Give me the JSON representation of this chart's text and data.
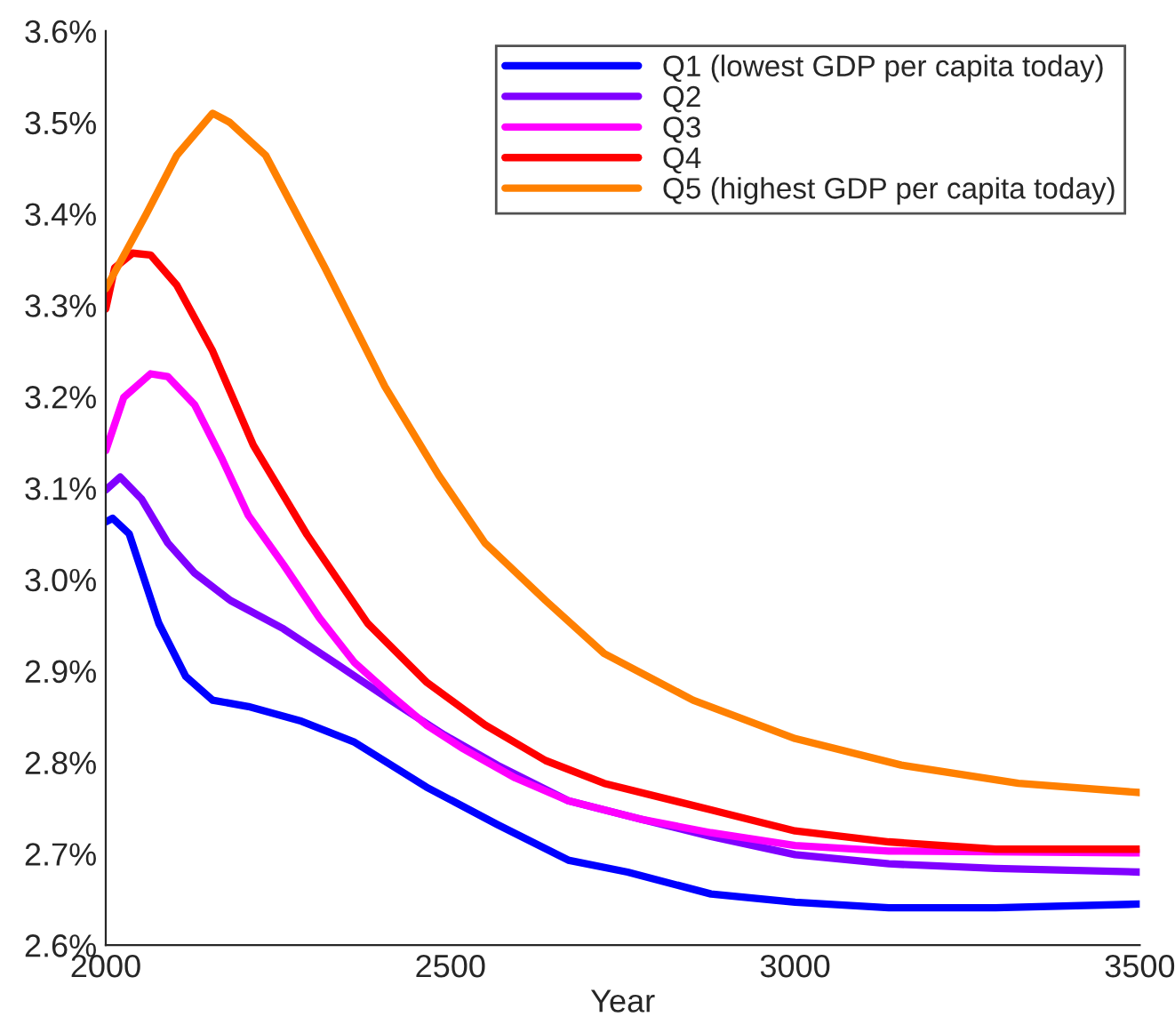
{
  "chart_data": {
    "type": "line",
    "xlabel": "Year",
    "xlim": [
      2000,
      3500
    ],
    "xticks": [
      2000,
      2500,
      3000,
      3500
    ],
    "ylim": [
      2.6,
      3.6
    ],
    "yticks": [
      {
        "value": 2.6,
        "label": "2.6%"
      },
      {
        "value": 2.7,
        "label": "2.7%"
      },
      {
        "value": 2.8,
        "label": "2.8%"
      },
      {
        "value": 2.9,
        "label": "2.9%"
      },
      {
        "value": 3.0,
        "label": "3.0%"
      },
      {
        "value": 3.1,
        "label": "3.1%"
      },
      {
        "value": 3.2,
        "label": "3.2%"
      },
      {
        "value": 3.3,
        "label": "3.3%"
      },
      {
        "value": 3.4,
        "label": "3.4%"
      },
      {
        "value": 3.5,
        "label": "3.5%"
      },
      {
        "value": 3.6,
        "label": "3.6%"
      }
    ],
    "grid": false,
    "legend": "top right",
    "series": [
      {
        "name": "Q1 (lowest GDP per capita today)",
        "color": "#0000ff",
        "x": [
          2000,
          2010,
          2034,
          2077,
          2116,
          2155,
          2207,
          2284,
          2361,
          2465,
          2568,
          2671,
          2757,
          2878,
          3000,
          3136,
          3291,
          3500
        ],
        "values": [
          3.063,
          3.067,
          3.05,
          2.952,
          2.894,
          2.868,
          2.861,
          2.845,
          2.822,
          2.773,
          2.732,
          2.693,
          2.68,
          2.656,
          2.647,
          2.641,
          2.641,
          2.645
        ]
      },
      {
        "name": "Q2",
        "color": "#8000ff",
        "x": [
          2000,
          2021,
          2052,
          2090,
          2129,
          2181,
          2258,
          2336,
          2413,
          2491,
          2568,
          2671,
          2775,
          2878,
          3000,
          3136,
          3291,
          3500
        ],
        "values": [
          3.098,
          3.112,
          3.088,
          3.04,
          3.007,
          2.977,
          2.946,
          2.907,
          2.868,
          2.83,
          2.797,
          2.758,
          2.738,
          2.719,
          2.699,
          2.689,
          2.684,
          2.68
        ]
      },
      {
        "name": "Q3",
        "color": "#ff00ff",
        "x": [
          2000,
          2026,
          2065,
          2090,
          2129,
          2168,
          2207,
          2258,
          2310,
          2361,
          2413,
          2465,
          2516,
          2594,
          2671,
          2775,
          2878,
          3000,
          3136,
          3500
        ],
        "values": [
          3.141,
          3.199,
          3.225,
          3.222,
          3.191,
          3.133,
          3.07,
          3.016,
          2.958,
          2.909,
          2.874,
          2.841,
          2.816,
          2.783,
          2.758,
          2.738,
          2.723,
          2.709,
          2.703,
          2.701
        ]
      },
      {
        "name": "Q4",
        "color": "#ff0000",
        "x": [
          2000,
          2013,
          2039,
          2065,
          2103,
          2155,
          2214,
          2292,
          2380,
          2465,
          2550,
          2638,
          2723,
          2878,
          3000,
          3136,
          3291,
          3500
        ],
        "values": [
          3.296,
          3.341,
          3.357,
          3.355,
          3.322,
          3.25,
          3.147,
          3.049,
          2.952,
          2.888,
          2.841,
          2.802,
          2.777,
          2.748,
          2.725,
          2.713,
          2.705,
          2.705
        ]
      },
      {
        "name": "Q5 (highest GDP per capita today)",
        "color": "#ff8000",
        "x": [
          2000,
          2059,
          2103,
          2155,
          2180,
          2232,
          2318,
          2405,
          2483,
          2550,
          2638,
          2723,
          2852,
          3000,
          3154,
          3324,
          3500
        ],
        "values": [
          3.318,
          3.4,
          3.464,
          3.51,
          3.5,
          3.464,
          3.341,
          3.211,
          3.114,
          3.04,
          2.977,
          2.919,
          2.868,
          2.826,
          2.797,
          2.777,
          2.767
        ]
      }
    ]
  }
}
